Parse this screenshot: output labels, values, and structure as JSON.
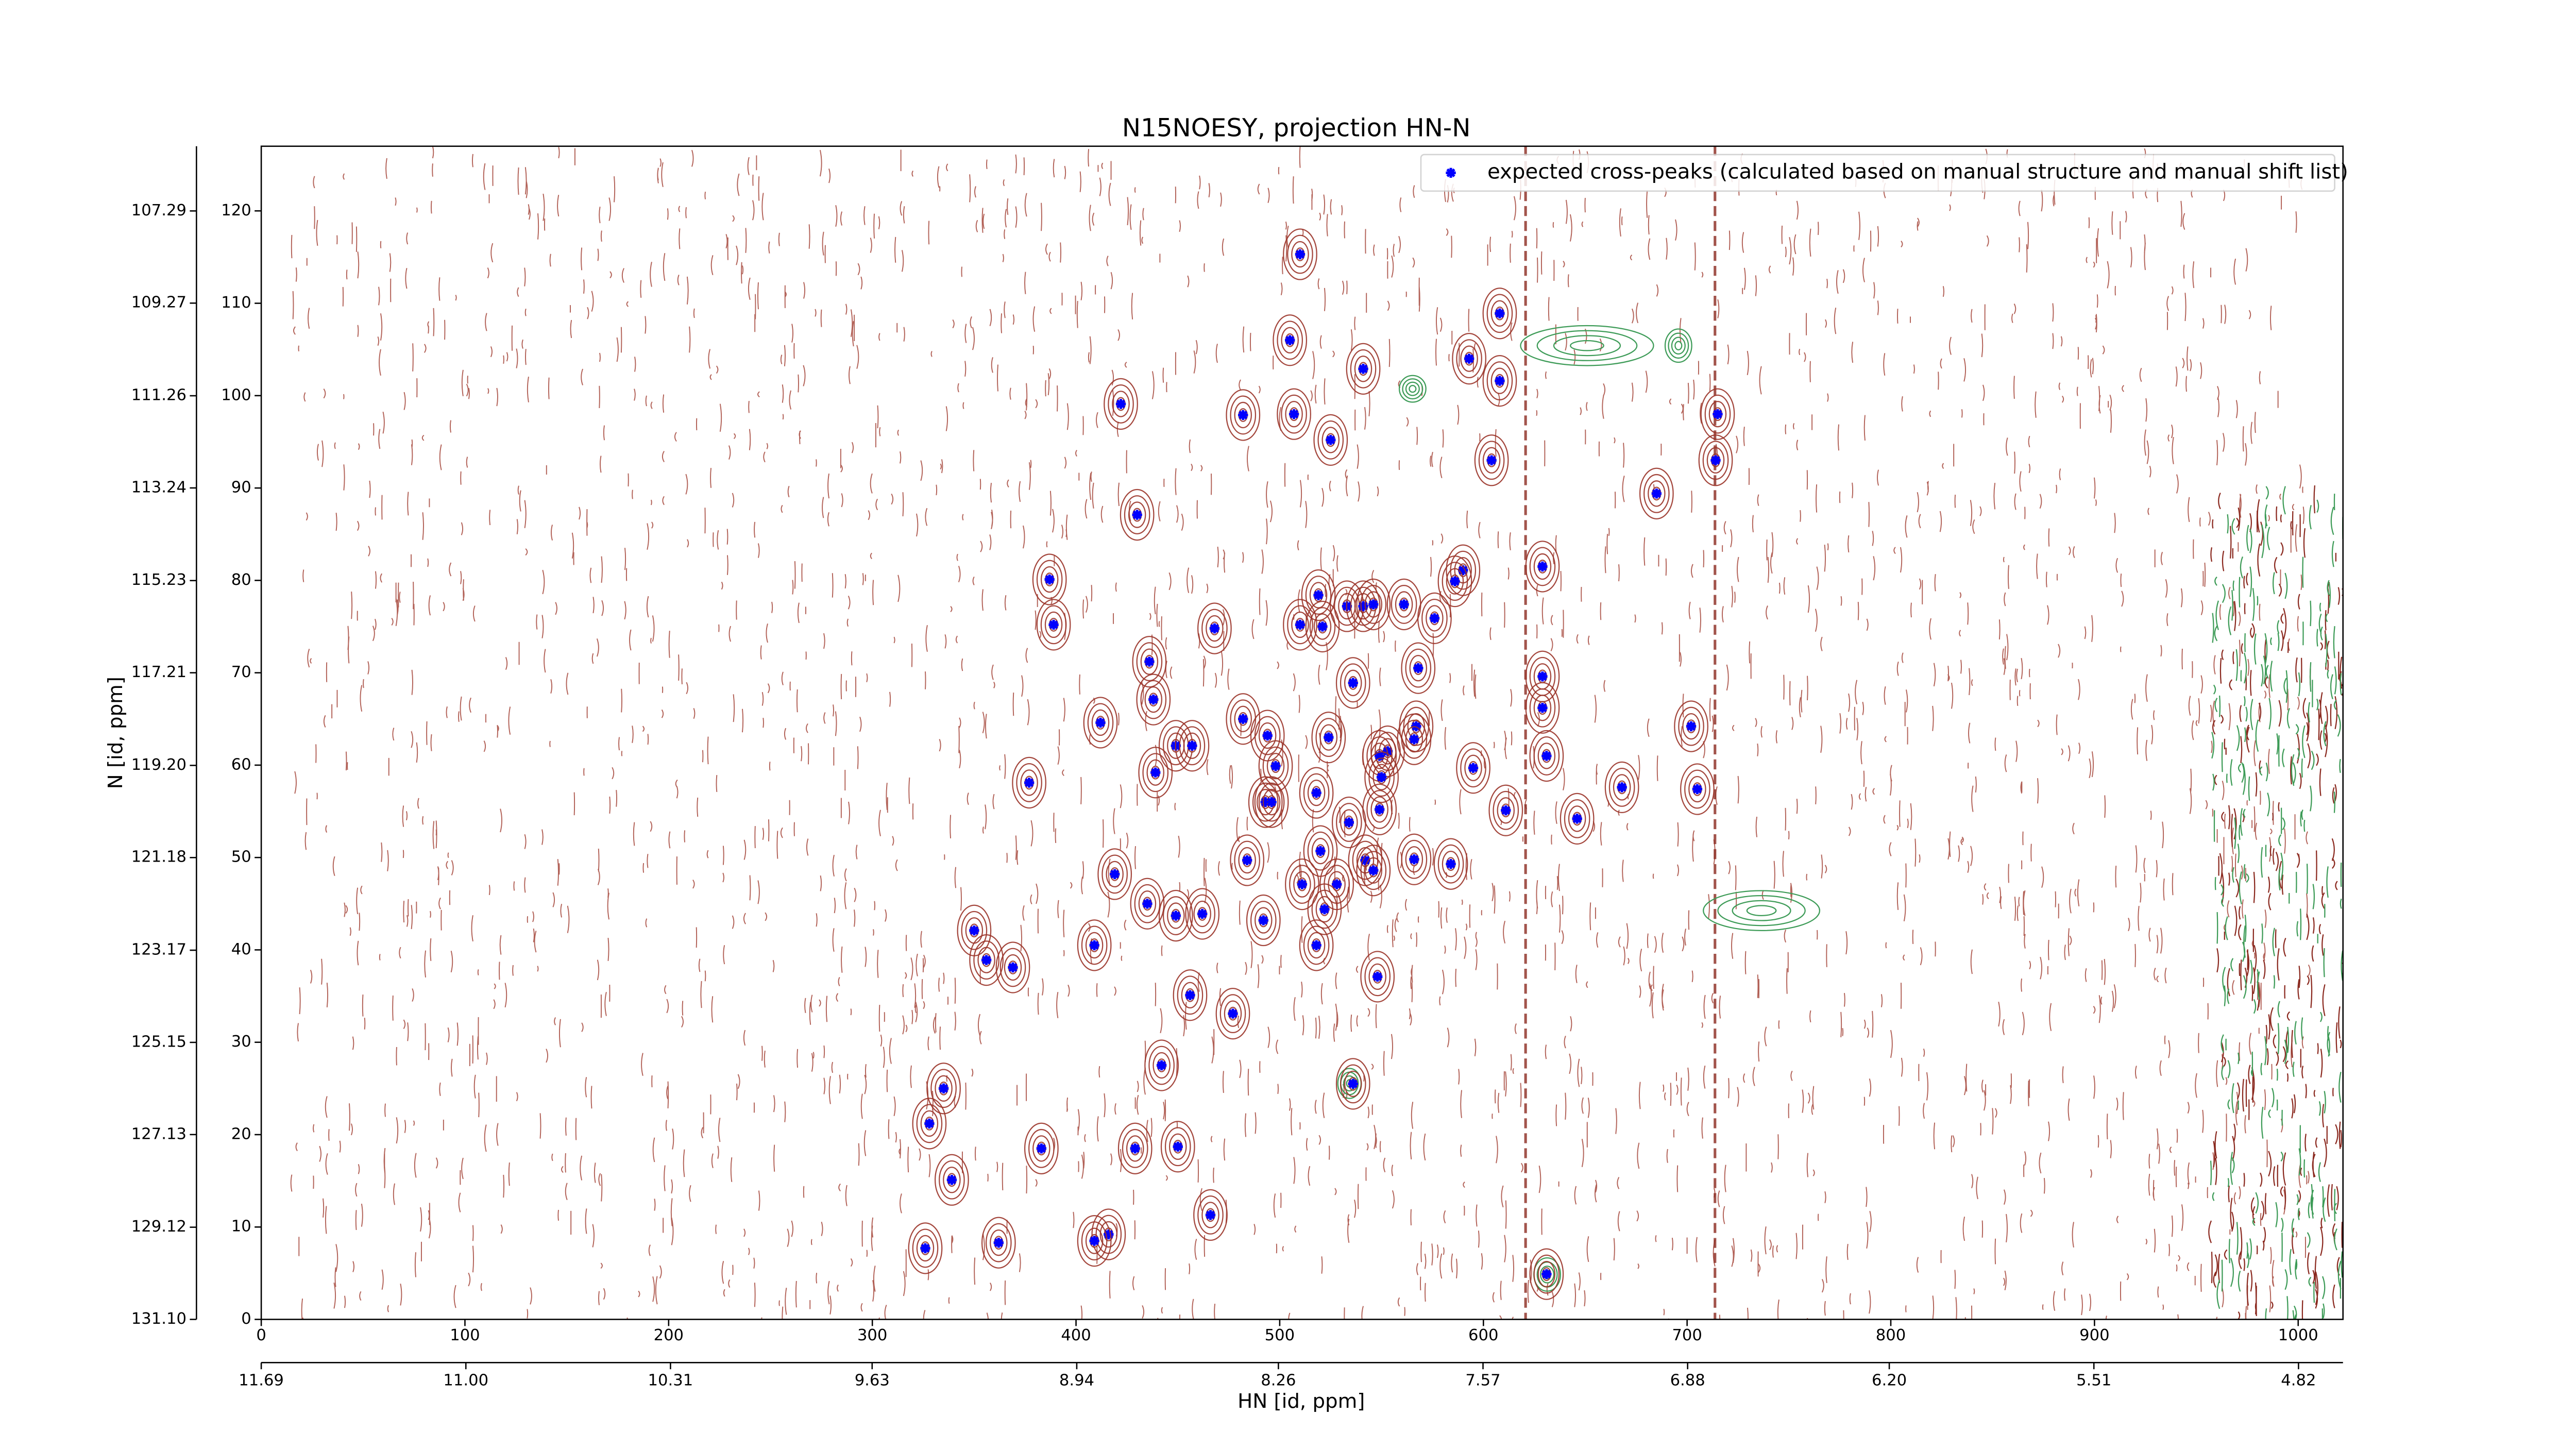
{
  "chart_data": {
    "type": "scatter",
    "title": "N15NOESY, projection HN-N",
    "xlabel": "HN [id, ppm]",
    "ylabel": "N [id, ppm]",
    "xlim": [
      0,
      1022
    ],
    "xticks": [
      0,
      100,
      200,
      300,
      400,
      500,
      600,
      700,
      800,
      900,
      1000
    ],
    "ylim": [
      0,
      127
    ],
    "yticks": [
      0,
      10,
      20,
      30,
      40,
      50,
      60,
      70,
      80,
      90,
      100,
      110,
      120
    ],
    "x2lim": [
      11.69,
      4.67
    ],
    "x2ticks": [
      11.69,
      {
        "value": 11.0,
        "label": "11.00"
      },
      10.31,
      9.63,
      8.94,
      8.26,
      7.57,
      6.88,
      {
        "value": 6.2,
        "label": "6.20"
      },
      5.51,
      4.82
    ],
    "y2lim": [
      131.1,
      105.9
    ],
    "y2ticks": [
      {
        "value": 131.1,
        "label": "131.10"
      },
      129.12,
      127.13,
      125.15,
      123.17,
      121.18,
      {
        "value": 119.2,
        "label": "119.20"
      },
      117.21,
      115.23,
      113.24,
      111.26,
      109.27,
      107.29
    ],
    "legend": "upper right",
    "series": [
      {
        "name": "expected cross-peaks (calculated based on manual structure and manual shift list)",
        "color": "#0000ff",
        "x": [
          510,
          608,
          505,
          593,
          541,
          608,
          422,
          482,
          507,
          715,
          525,
          604,
          714,
          685,
          430,
          629,
          590,
          387,
          586,
          519,
          561,
          533,
          541,
          546,
          576,
          389,
          510,
          521,
          468,
          436,
          568,
          629,
          536,
          438,
          629,
          702,
          412,
          482,
          567,
          566,
          524,
          494,
          449,
          457,
          553,
          549,
          631,
          498,
          595,
          439,
          550,
          377,
          668,
          705,
          518,
          493,
          496,
          549,
          611,
          534,
          646,
          520,
          542,
          566,
          584,
          484,
          546,
          419,
          511,
          528,
          435,
          522,
          449,
          462,
          492,
          350,
          518,
          409,
          356,
          369,
          548,
          456,
          477,
          442,
          536,
          335,
          328,
          383,
          429,
          450,
          339,
          466,
          416,
          409,
          362,
          326,
          631
        ],
        "values": [
          115.3,
          108.9,
          106,
          104,
          102.9,
          101.6,
          99.1,
          97.9,
          98,
          98,
          95.2,
          93,
          93,
          89.4,
          87.1,
          81.5,
          81.1,
          80.1,
          79.9,
          78.4,
          77.4,
          77.2,
          77.2,
          77.4,
          75.9,
          75.2,
          75.2,
          75,
          74.8,
          71.2,
          70.5,
          69.6,
          68.9,
          67.1,
          66.2,
          64.2,
          64.6,
          65,
          64.2,
          62.8,
          63,
          63.2,
          62.1,
          62.1,
          61.5,
          61,
          61,
          59.9,
          59.7,
          59.2,
          58.7,
          58.1,
          57.6,
          57.4,
          57,
          56,
          56,
          55.2,
          55.1,
          53.8,
          54.2,
          50.7,
          49.7,
          49.8,
          49.3,
          49.7,
          48.6,
          48.2,
          47.1,
          47.1,
          45,
          44.4,
          43.7,
          43.9,
          43.2,
          42.1,
          40.5,
          40.5,
          38.9,
          38.1,
          37.1,
          35.1,
          33.1,
          27.5,
          25.5,
          25,
          21.2,
          18.5,
          18.5,
          18.7,
          15.1,
          11.3,
          9.2,
          8.5,
          8.3,
          7.7,
          4.9
        ]
      }
    ]
  }
}
